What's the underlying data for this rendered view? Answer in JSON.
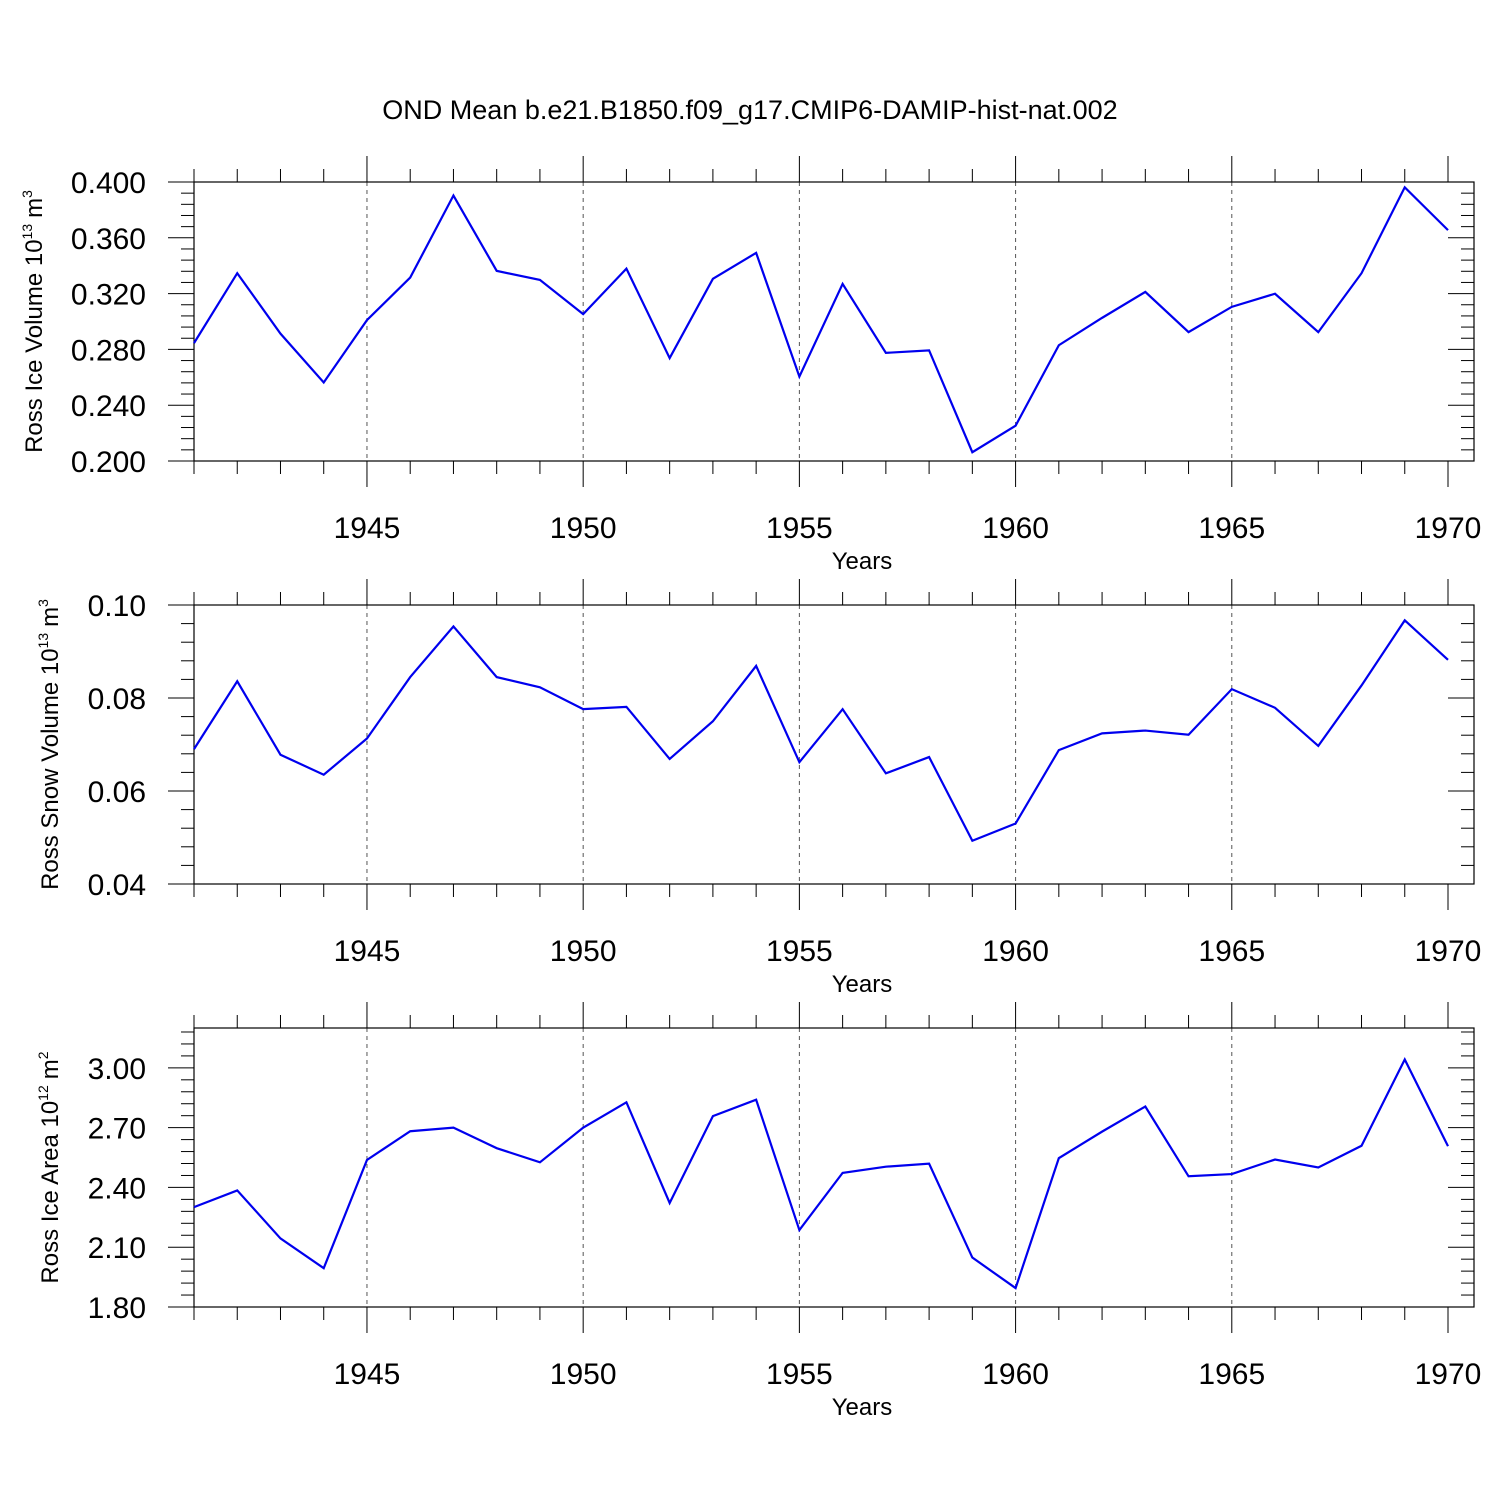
{
  "title": "OND Mean b.e21.B1850.f09_g17.CMIP6-DAMIP-hist-nat.002",
  "colors": {
    "line": "#0000ee",
    "axis": "#000000",
    "grid": "#555555"
  },
  "chart_data": [
    {
      "type": "line",
      "name": "ross-ice-volume",
      "ylabel_main": "Ross Ice Volume 10",
      "ylabel_exp": "13",
      "ylabel_unit": "m",
      "ylabel_unit_exp": "3",
      "xlabel": "Years",
      "xlim": [
        1941,
        1970
      ],
      "ylim": [
        0.2,
        0.4
      ],
      "y_ticks": [
        0.2,
        0.24,
        0.28,
        0.32,
        0.36,
        0.4
      ],
      "y_tick_labels": [
        "0.200",
        "0.240",
        "0.280",
        "0.320",
        "0.360",
        "0.400"
      ],
      "x_ticks": [
        1945,
        1950,
        1955,
        1960,
        1965,
        1970
      ],
      "x_tick_labels": [
        "1945",
        "1950",
        "1955",
        "1960",
        "1965",
        "1970"
      ],
      "grid": "vertical dashed at major x ticks",
      "x": [
        1941,
        1942,
        1943,
        1944,
        1945,
        1946,
        1947,
        1948,
        1949,
        1950,
        1951,
        1952,
        1953,
        1954,
        1955,
        1956,
        1957,
        1958,
        1959,
        1960,
        1961,
        1962,
        1963,
        1964,
        1965,
        1966,
        1967,
        1968,
        1969,
        1970
      ],
      "values": [
        0.2845,
        0.3346,
        0.2913,
        0.2563,
        0.301,
        0.3315,
        0.3903,
        0.3363,
        0.3298,
        0.3053,
        0.3379,
        0.2738,
        0.3306,
        0.3492,
        0.2605,
        0.3269,
        0.2775,
        0.2793,
        0.2063,
        0.2253,
        0.283,
        0.3026,
        0.3212,
        0.2924,
        0.3105,
        0.3199,
        0.2924,
        0.3346,
        0.3962,
        0.3655
      ]
    },
    {
      "type": "line",
      "name": "ross-snow-volume",
      "ylabel_main": "Ross Snow Volume 10",
      "ylabel_exp": "13",
      "ylabel_unit": "m",
      "ylabel_unit_exp": "3",
      "xlabel": "Years",
      "xlim": [
        1941,
        1970
      ],
      "ylim": [
        0.04,
        0.1
      ],
      "y_ticks": [
        0.04,
        0.06,
        0.08,
        0.1
      ],
      "y_tick_labels": [
        "0.04",
        "0.06",
        "0.08",
        "0.10"
      ],
      "x_ticks": [
        1945,
        1950,
        1955,
        1960,
        1965,
        1970
      ],
      "x_tick_labels": [
        "1945",
        "1950",
        "1955",
        "1960",
        "1965",
        "1970"
      ],
      "grid": "vertical dashed at major x ticks",
      "x": [
        1941,
        1942,
        1943,
        1944,
        1945,
        1946,
        1947,
        1948,
        1949,
        1950,
        1951,
        1952,
        1953,
        1954,
        1955,
        1956,
        1957,
        1958,
        1959,
        1960,
        1961,
        1962,
        1963,
        1964,
        1965,
        1966,
        1967,
        1968,
        1969,
        1970
      ],
      "values": [
        0.069,
        0.0836,
        0.0678,
        0.0635,
        0.0713,
        0.0845,
        0.0954,
        0.0845,
        0.0823,
        0.0776,
        0.0781,
        0.0669,
        0.075,
        0.0869,
        0.0662,
        0.0776,
        0.0638,
        0.0673,
        0.0493,
        0.053,
        0.0688,
        0.0724,
        0.073,
        0.0721,
        0.0819,
        0.0779,
        0.0697,
        0.0827,
        0.0967,
        0.0882
      ]
    },
    {
      "type": "line",
      "name": "ross-ice-area",
      "ylabel_main": "Ross Ice Area 10",
      "ylabel_exp": "12",
      "ylabel_unit": "m",
      "ylabel_unit_exp": "2",
      "xlabel": "Years",
      "xlim": [
        1941,
        1970
      ],
      "ylim": [
        1.8,
        3.2
      ],
      "y_ticks": [
        1.8,
        2.1,
        2.4,
        2.7,
        3.0
      ],
      "y_tick_labels": [
        "1.80",
        "2.10",
        "2.40",
        "2.70",
        "3.00"
      ],
      "x_ticks": [
        1945,
        1950,
        1955,
        1960,
        1965,
        1970
      ],
      "x_tick_labels": [
        "1945",
        "1950",
        "1955",
        "1960",
        "1965",
        "1970"
      ],
      "grid": "vertical dashed at major x ticks",
      "x": [
        1941,
        1942,
        1943,
        1944,
        1945,
        1946,
        1947,
        1948,
        1949,
        1950,
        1951,
        1952,
        1953,
        1954,
        1955,
        1956,
        1957,
        1958,
        1959,
        1960,
        1961,
        1962,
        1963,
        1964,
        1965,
        1966,
        1967,
        1968,
        1969,
        1970
      ],
      "values": [
        2.301,
        2.385,
        2.144,
        1.995,
        2.538,
        2.682,
        2.7,
        2.597,
        2.526,
        2.7,
        2.827,
        2.322,
        2.758,
        2.84,
        2.186,
        2.473,
        2.504,
        2.519,
        2.048,
        1.895,
        2.547,
        2.68,
        2.806,
        2.456,
        2.467,
        2.54,
        2.5,
        2.609,
        3.042,
        2.607
      ]
    }
  ]
}
